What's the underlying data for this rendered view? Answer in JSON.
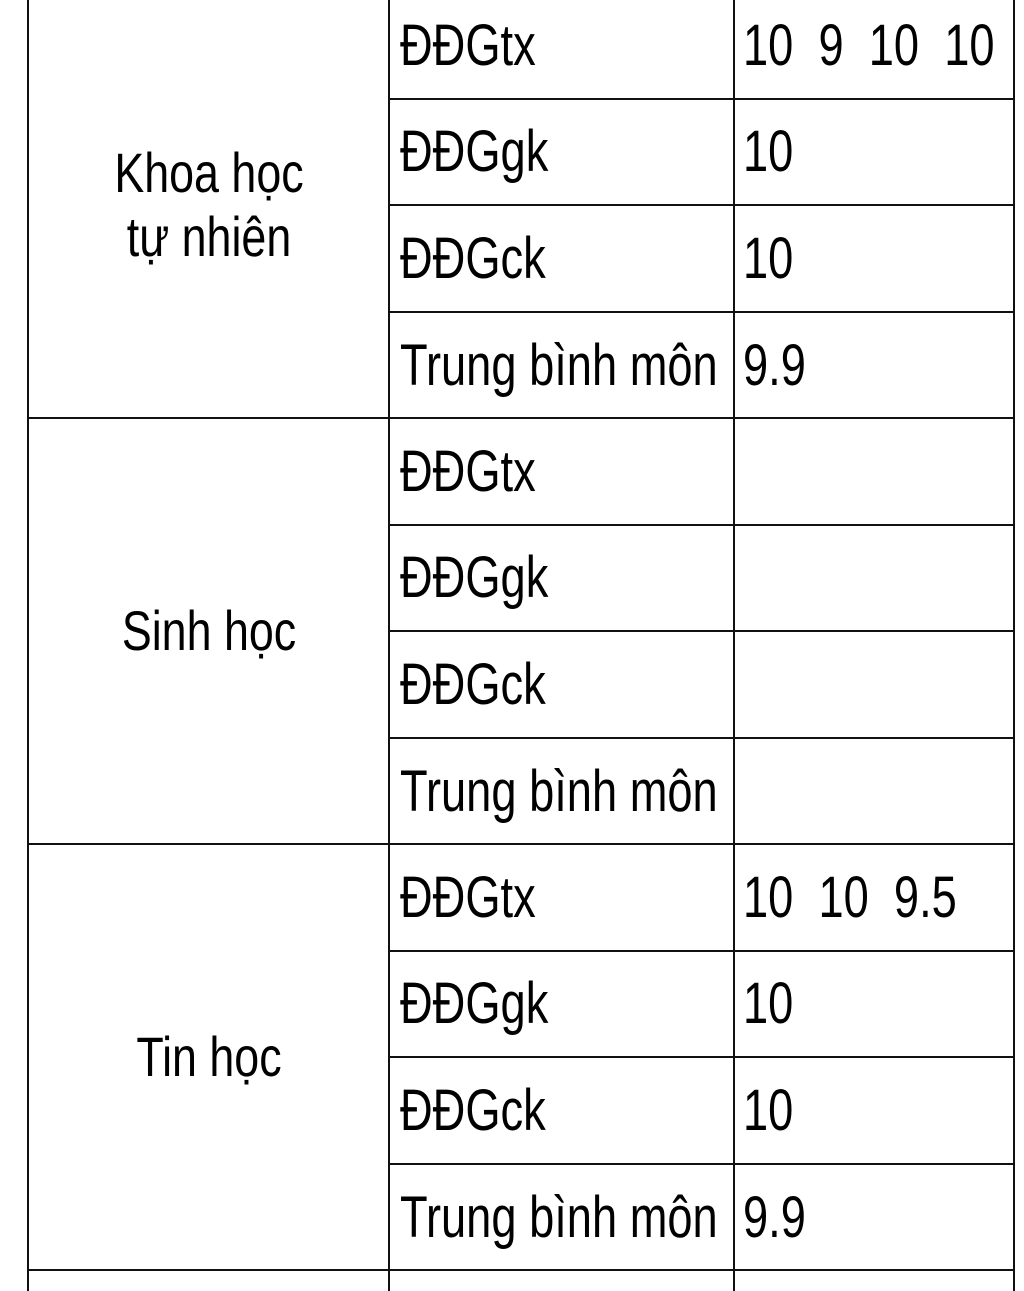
{
  "subjects": [
    {
      "name": "Khoa học tự nhiên",
      "rows": [
        {
          "label": "ĐĐGtx",
          "value": "10  9  10  10"
        },
        {
          "label": "ĐĐGgk",
          "value": "10"
        },
        {
          "label": "ĐĐGck",
          "value": "10"
        },
        {
          "label": "Trung bình môn",
          "value": "9.9"
        }
      ]
    },
    {
      "name": "Sinh học",
      "rows": [
        {
          "label": "ĐĐGtx",
          "value": ""
        },
        {
          "label": "ĐĐGgk",
          "value": ""
        },
        {
          "label": "ĐĐGck",
          "value": ""
        },
        {
          "label": "Trung bình môn",
          "value": ""
        }
      ]
    },
    {
      "name": "Tin học",
      "rows": [
        {
          "label": "ĐĐGtx",
          "value": "10  10  9.5"
        },
        {
          "label": "ĐĐGgk",
          "value": "10"
        },
        {
          "label": "ĐĐGck",
          "value": "10"
        },
        {
          "label": "Trung bình môn",
          "value": "9.9"
        }
      ]
    }
  ]
}
